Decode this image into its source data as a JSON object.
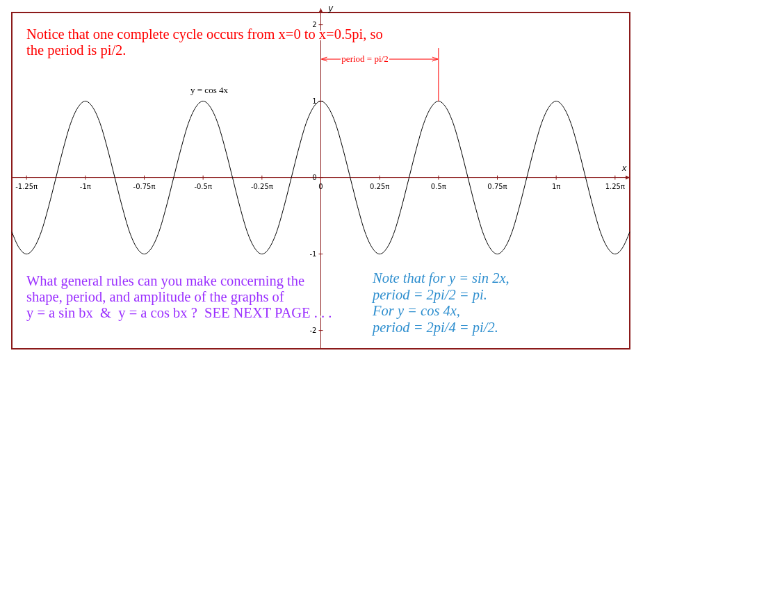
{
  "chart_data": {
    "type": "line",
    "xlabel": "x",
    "ylabel": "y",
    "categories": [
      null,
      null,
      "-1.25π",
      null,
      null,
      null,
      null,
      null,
      null,
      null,
      "-1π",
      null,
      null,
      null,
      null,
      null,
      null,
      null,
      "-0.75π",
      null,
      null,
      null,
      null,
      null,
      null,
      null,
      "-0.5π",
      null,
      null,
      null,
      null,
      null,
      null,
      null,
      "-0.25π",
      null,
      null,
      null,
      null,
      null,
      null,
      null,
      "0",
      null,
      null,
      null,
      null,
      null,
      null,
      null,
      "0.25π",
      null,
      null,
      null,
      null,
      null,
      null,
      null,
      "0.5π",
      null,
      null,
      null,
      null,
      null,
      null,
      null,
      "0.75π",
      null,
      null,
      null,
      null,
      null,
      null,
      null,
      "1π",
      null,
      null,
      null,
      null,
      null,
      null,
      null,
      "1.25π",
      null,
      null
    ],
    "ylim": [
      -2.24,
      2.16
    ],
    "yticks": [
      -2,
      -1,
      0,
      1,
      2
    ],
    "grid": false,
    "marker": "none",
    "line_style": "solid",
    "series": [
      {
        "name": "y = cos 4x",
        "color": "#000000",
        "values": [
          -0.71,
          -0.92,
          -1,
          -0.92,
          -0.71,
          -0.38,
          0,
          0.38,
          0.71,
          0.92,
          1,
          0.92,
          0.71,
          0.38,
          0,
          -0.38,
          -0.71,
          -0.92,
          -1,
          -0.92,
          -0.71,
          -0.38,
          0,
          0.38,
          0.71,
          0.92,
          1,
          0.92,
          0.71,
          0.38,
          0,
          -0.38,
          -0.71,
          -0.92,
          -1,
          -0.92,
          -0.71,
          -0.38,
          0,
          0.38,
          0.71,
          0.92,
          1,
          0.92,
          0.71,
          0.38,
          0,
          -0.38,
          -0.71,
          -0.92,
          -1,
          -0.92,
          -0.71,
          -0.38,
          0,
          0.38,
          0.71,
          0.92,
          1,
          0.92,
          0.71,
          0.38,
          0,
          -0.38,
          -0.71,
          -0.92,
          -1,
          -0.92,
          -0.71,
          -0.38,
          0,
          0.38,
          0.71,
          0.92,
          1,
          0.92,
          0.71,
          0.38,
          0,
          -0.38,
          -0.71,
          -0.92,
          -1,
          -0.92,
          -0.71
        ]
      }
    ],
    "ref_lines": [
      {
        "axis": "x",
        "value": "0.5π",
        "color": "#ff0000"
      }
    ],
    "annotations": [
      {
        "text": "Notice that one complete cycle occurs from x=0 to x=0.5pi, so\nthe period is pi/2.",
        "x": "0.5π",
        "y": 1.55
      },
      "period = pi/2",
      "What general rules can you make concerning the\nshape, period, and amplitude of the graphs of\ny = a sin bx  &  y = a cos bx ?  SEE NEXT PAGE . . .",
      "Note that for y = sin 2x,\nperiod = 2pi/2 = pi.\nFor y = cos 4x,\nperiod = 2pi/4 = pi/2."
    ]
  }
}
